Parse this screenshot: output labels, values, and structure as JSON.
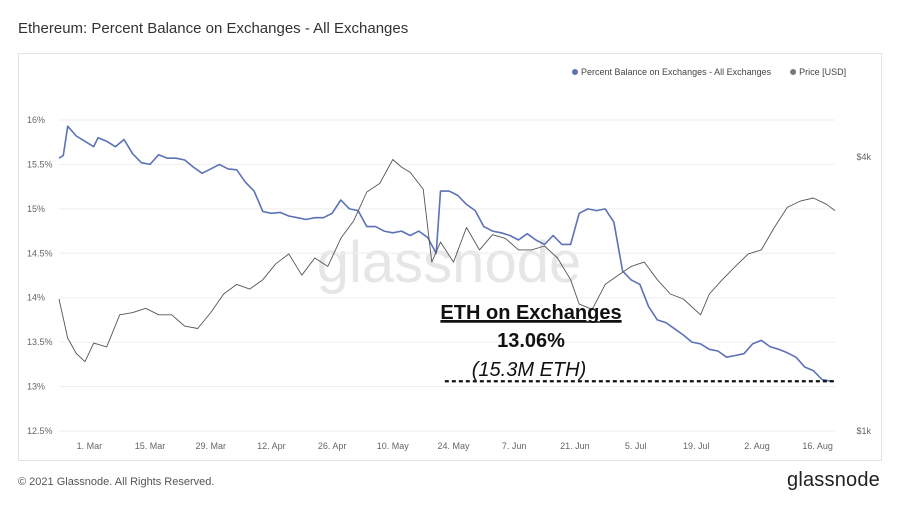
{
  "header": {
    "title": "Ethereum: Percent Balance on Exchanges - All Exchanges"
  },
  "footer": {
    "copyright": "© 2021 Glassnode. All Rights Reserved.",
    "brand": "glassnode"
  },
  "watermark": "glassnode",
  "colors": {
    "balance": "#5b72b6",
    "price": "#555555",
    "grid": "#eeeeee"
  },
  "chart_data": {
    "type": "line",
    "title": "Ethereum: Percent Balance on Exchanges - All Exchanges",
    "x_ticks": [
      "1. Mar",
      "15. Mar",
      "29. Mar",
      "12. Apr",
      "26. Apr",
      "10. May",
      "24. May",
      "7. Jun",
      "21. Jun",
      "5. Jul",
      "19. Jul",
      "2. Aug",
      "16. Aug"
    ],
    "x_range": [
      "2021-02-22",
      "2021-08-20"
    ],
    "y_left": {
      "ticks": [
        "12.5%",
        "13%",
        "13.5%",
        "14%",
        "14.5%",
        "15%",
        "15.5%",
        "16%"
      ],
      "range": [
        12.5,
        16
      ]
    },
    "y_right": {
      "ticks": [
        "$1k",
        "$4k"
      ],
      "scale": "log",
      "range": [
        1000,
        4000
      ]
    },
    "legend": {
      "position": "top-right",
      "items": [
        {
          "label": "Percent Balance on Exchanges - All Exchanges",
          "color": "#5b72b6"
        },
        {
          "label": "Price [USD]",
          "color": "#777777"
        }
      ]
    },
    "series": [
      {
        "name": "Percent Balance on Exchanges - All Exchanges",
        "axis": "left",
        "x": [
          "2021-02-22",
          "2021-02-23",
          "2021-02-24",
          "2021-02-26",
          "2021-02-28",
          "2021-03-02",
          "2021-03-03",
          "2021-03-05",
          "2021-03-07",
          "2021-03-09",
          "2021-03-11",
          "2021-03-13",
          "2021-03-15",
          "2021-03-17",
          "2021-03-19",
          "2021-03-21",
          "2021-03-23",
          "2021-03-25",
          "2021-03-27",
          "2021-03-29",
          "2021-03-31",
          "2021-04-02",
          "2021-04-04",
          "2021-04-06",
          "2021-04-08",
          "2021-04-10",
          "2021-04-12",
          "2021-04-14",
          "2021-04-16",
          "2021-04-18",
          "2021-04-20",
          "2021-04-22",
          "2021-04-24",
          "2021-04-26",
          "2021-04-28",
          "2021-04-30",
          "2021-05-02",
          "2021-05-04",
          "2021-05-06",
          "2021-05-08",
          "2021-05-10",
          "2021-05-12",
          "2021-05-14",
          "2021-05-16",
          "2021-05-18",
          "2021-05-20",
          "2021-05-21",
          "2021-05-23",
          "2021-05-25",
          "2021-05-27",
          "2021-05-29",
          "2021-05-31",
          "2021-06-02",
          "2021-06-04",
          "2021-06-06",
          "2021-06-08",
          "2021-06-10",
          "2021-06-12",
          "2021-06-14",
          "2021-06-16",
          "2021-06-18",
          "2021-06-20",
          "2021-06-22",
          "2021-06-24",
          "2021-06-26",
          "2021-06-28",
          "2021-06-30",
          "2021-07-02",
          "2021-07-04",
          "2021-07-06",
          "2021-07-08",
          "2021-07-10",
          "2021-07-12",
          "2021-07-14",
          "2021-07-16",
          "2021-07-18",
          "2021-07-20",
          "2021-07-22",
          "2021-07-24",
          "2021-07-26",
          "2021-07-28",
          "2021-07-30",
          "2021-08-01",
          "2021-08-03",
          "2021-08-05",
          "2021-08-07",
          "2021-08-09",
          "2021-08-11",
          "2021-08-13",
          "2021-08-15",
          "2021-08-17",
          "2021-08-19"
        ],
        "y": [
          15.57,
          15.6,
          15.93,
          15.82,
          15.76,
          15.7,
          15.8,
          15.76,
          15.7,
          15.78,
          15.62,
          15.52,
          15.5,
          15.61,
          15.57,
          15.57,
          15.55,
          15.47,
          15.4,
          15.45,
          15.5,
          15.45,
          15.44,
          15.3,
          15.2,
          14.97,
          14.95,
          14.96,
          14.92,
          14.9,
          14.88,
          14.9,
          14.9,
          14.95,
          15.1,
          15.0,
          14.98,
          14.8,
          14.8,
          14.75,
          14.73,
          14.75,
          14.7,
          14.75,
          14.68,
          14.5,
          15.2,
          15.2,
          15.15,
          15.05,
          14.98,
          14.8,
          14.75,
          14.73,
          14.7,
          14.65,
          14.72,
          14.65,
          14.6,
          14.7,
          14.6,
          14.6,
          14.95,
          15.0,
          14.98,
          15.0,
          14.85,
          14.3,
          14.2,
          14.15,
          13.9,
          13.75,
          13.72,
          13.65,
          13.58,
          13.5,
          13.48,
          13.42,
          13.4,
          13.33,
          13.35,
          13.37,
          13.48,
          13.52,
          13.45,
          13.42,
          13.38,
          13.33,
          13.22,
          13.18,
          13.08,
          13.06
        ]
      },
      {
        "name": "Price [USD]",
        "axis": "right",
        "x": [
          "2021-02-22",
          "2021-02-24",
          "2021-02-26",
          "2021-02-28",
          "2021-03-02",
          "2021-03-05",
          "2021-03-08",
          "2021-03-11",
          "2021-03-14",
          "2021-03-17",
          "2021-03-20",
          "2021-03-23",
          "2021-03-26",
          "2021-03-29",
          "2021-04-01",
          "2021-04-04",
          "2021-04-07",
          "2021-04-10",
          "2021-04-13",
          "2021-04-16",
          "2021-04-19",
          "2021-04-22",
          "2021-04-25",
          "2021-04-28",
          "2021-05-01",
          "2021-05-04",
          "2021-05-07",
          "2021-05-10",
          "2021-05-12",
          "2021-05-14",
          "2021-05-17",
          "2021-05-19",
          "2021-05-21",
          "2021-05-24",
          "2021-05-27",
          "2021-05-30",
          "2021-06-02",
          "2021-06-05",
          "2021-06-08",
          "2021-06-11",
          "2021-06-14",
          "2021-06-17",
          "2021-06-20",
          "2021-06-22",
          "2021-06-25",
          "2021-06-28",
          "2021-07-01",
          "2021-07-04",
          "2021-07-07",
          "2021-07-10",
          "2021-07-13",
          "2021-07-16",
          "2021-07-20",
          "2021-07-22",
          "2021-07-25",
          "2021-07-28",
          "2021-07-31",
          "2021-08-03",
          "2021-08-06",
          "2021-08-09",
          "2021-08-12",
          "2021-08-15",
          "2021-08-18",
          "2021-08-20"
        ],
        "y": [
          1950,
          1600,
          1480,
          1420,
          1560,
          1530,
          1800,
          1820,
          1860,
          1800,
          1800,
          1700,
          1680,
          1820,
          2000,
          2100,
          2050,
          2150,
          2330,
          2450,
          2200,
          2400,
          2300,
          2650,
          2900,
          3350,
          3500,
          3950,
          3800,
          3700,
          3400,
          2350,
          2600,
          2350,
          2800,
          2500,
          2700,
          2650,
          2500,
          2500,
          2550,
          2400,
          2150,
          1900,
          1850,
          2100,
          2200,
          2300,
          2350,
          2150,
          2000,
          1950,
          1800,
          2000,
          2150,
          2300,
          2450,
          2500,
          2800,
          3100,
          3200,
          3250,
          3150,
          3050
        ]
      }
    ],
    "annotation": {
      "headline": "ETH on Exchanges",
      "value": "13.06%",
      "detail": "(15.3M ETH)",
      "level": 13.06,
      "from": "2021-05-22",
      "to": "2021-08-20"
    }
  }
}
